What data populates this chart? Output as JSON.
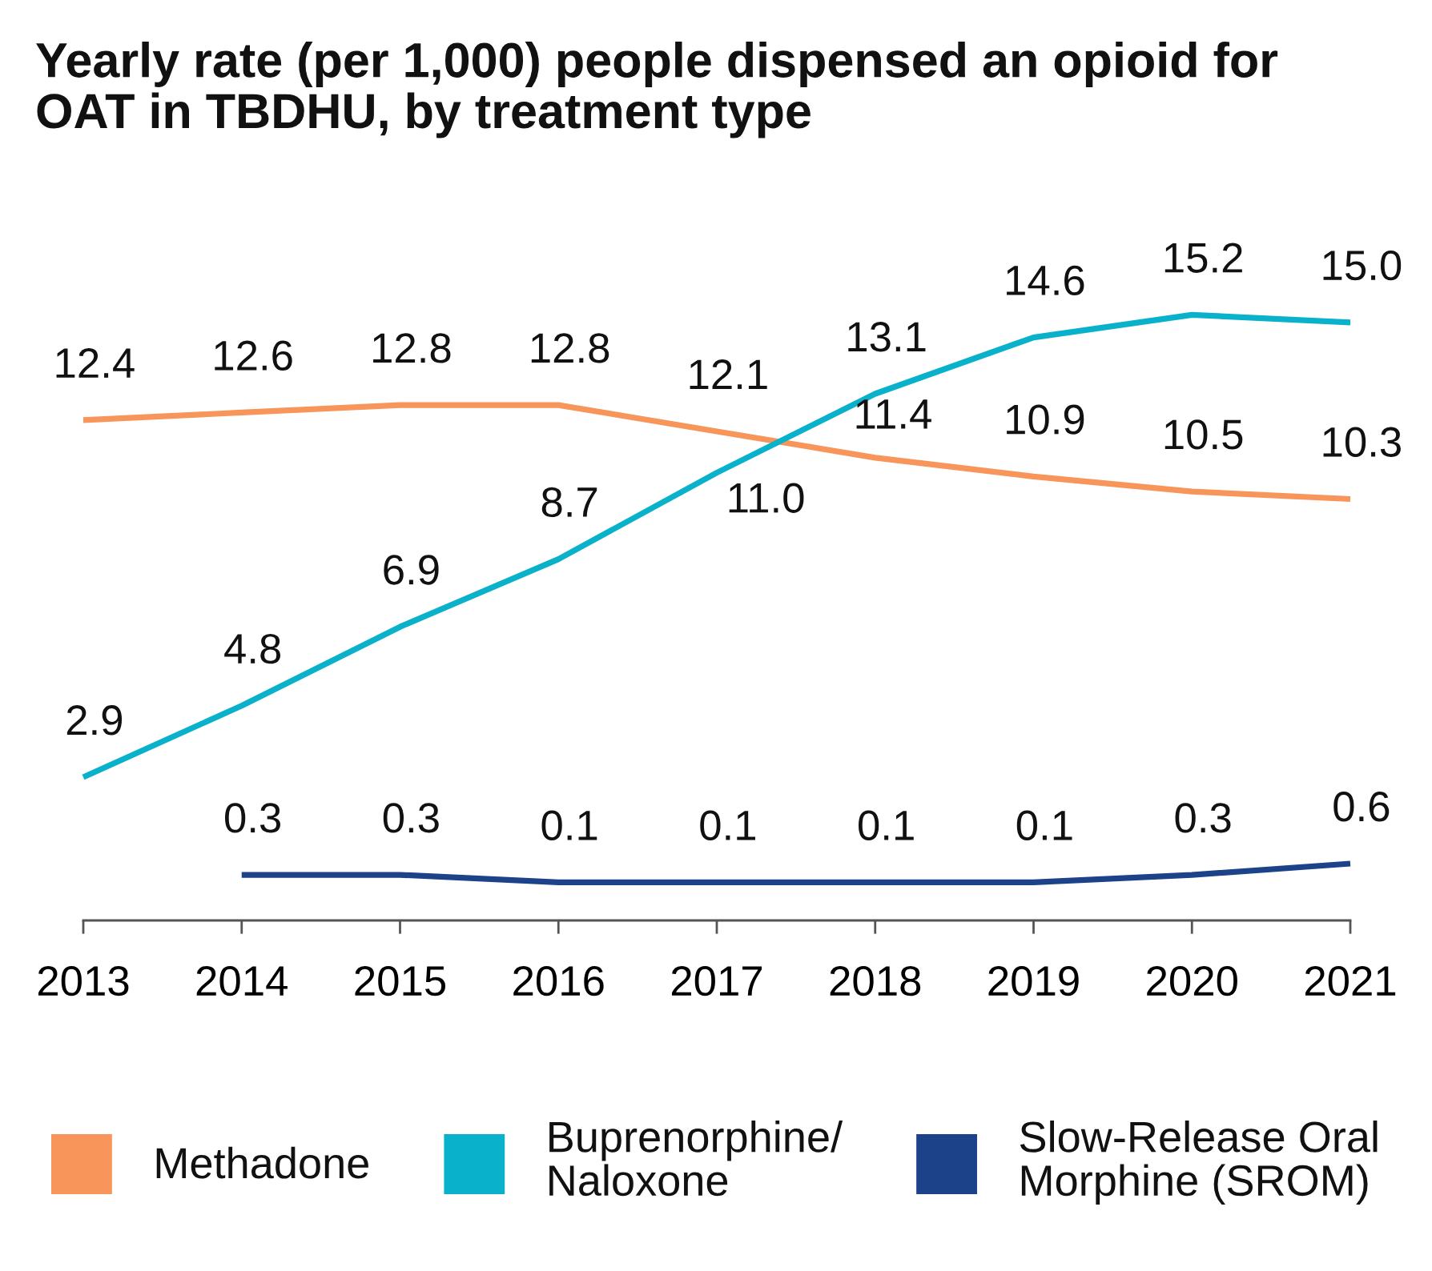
{
  "chart_data": {
    "type": "line",
    "title": "Yearly rate (per 1,000) people dispensed an opioid for OAT in TBDHU, by treatment type",
    "categories": [
      "2013",
      "2014",
      "2015",
      "2016",
      "2017",
      "2018",
      "2019",
      "2020",
      "2021"
    ],
    "series": [
      {
        "name": "Methadone",
        "color": "#f7955a",
        "values": [
          12.4,
          12.6,
          12.8,
          12.8,
          12.1,
          11.4,
          10.9,
          10.5,
          10.3
        ],
        "value_labels": [
          "12.4",
          "12.6",
          "12.8",
          "12.8",
          "12.1",
          "11.4",
          "10.9",
          "10.5",
          "10.3"
        ]
      },
      {
        "name": "Buprenorphine/\nNaloxone",
        "color": "#0ab1cb",
        "values": [
          2.9,
          4.8,
          6.9,
          8.7,
          11.0,
          13.1,
          14.6,
          15.2,
          15.0
        ],
        "value_labels": [
          "2.9",
          "4.8",
          "6.9",
          "8.7",
          "11.0",
          "13.1",
          "14.6",
          "15.2",
          "15.0"
        ]
      },
      {
        "name": "Slow-Release Oral\nMorphine (SROM)",
        "color": "#1c4289",
        "values": [
          null,
          0.3,
          0.3,
          0.1,
          0.1,
          0.1,
          0.1,
          0.3,
          0.6
        ],
        "value_labels": [
          null,
          "0.3",
          "0.3",
          "0.1",
          "0.1",
          "0.1",
          "0.1",
          "0.3",
          "0.6"
        ]
      }
    ],
    "data_labels": true,
    "tick_labels": "x",
    "grid": false,
    "legend": "bottom",
    "marker": "none",
    "line_style": "solid"
  }
}
